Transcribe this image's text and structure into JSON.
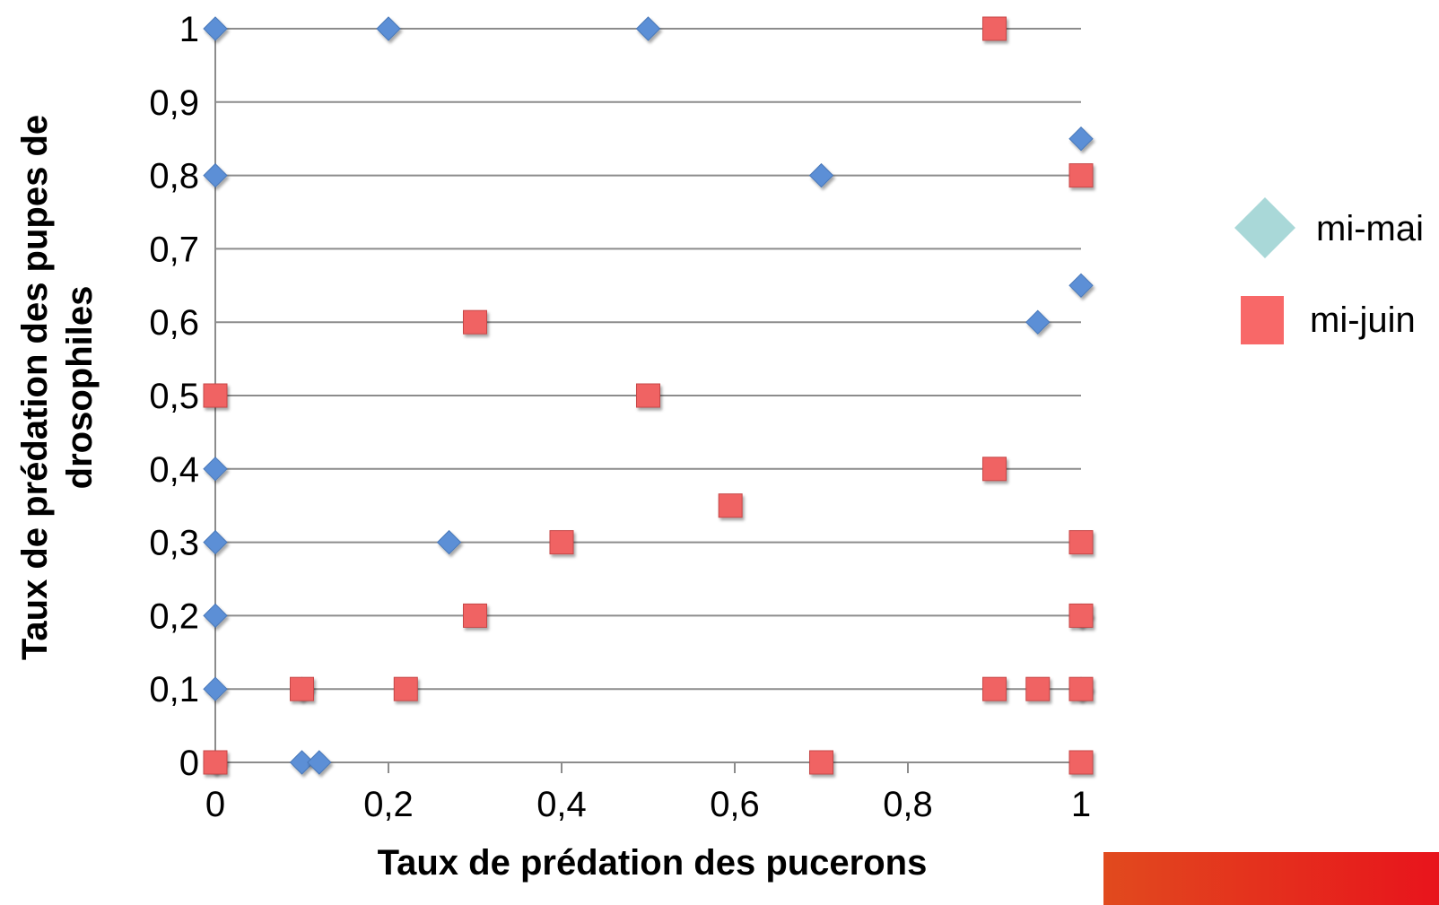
{
  "chart_data": {
    "type": "scatter",
    "xlabel": "Taux de prédation des pucerons",
    "ylabel_lines": [
      "Taux de prédation des pupes de",
      "drosophiles"
    ],
    "xlim": [
      0,
      1
    ],
    "ylim": [
      0,
      1
    ],
    "x_ticks": [
      0,
      0.2,
      0.4,
      0.6,
      0.8,
      1
    ],
    "x_tick_labels": [
      "0",
      "0,2",
      "0,4",
      "0,6",
      "0,8",
      "1"
    ],
    "y_ticks": [
      0,
      0.1,
      0.2,
      0.3,
      0.4,
      0.5,
      0.6,
      0.7,
      0.8,
      0.9,
      1
    ],
    "y_tick_labels": [
      "0",
      "0,1",
      "0,2",
      "0,3",
      "0,4",
      "0,5",
      "0,6",
      "0,7",
      "0,8",
      "0,9",
      "1"
    ],
    "grid": "horizontal",
    "legend_position": "right",
    "series": [
      {
        "name": "mi-mai",
        "marker": "diamond",
        "color": "#5b8fd6",
        "legend_color": "#a9d8d8",
        "points": [
          [
            0,
            1
          ],
          [
            0.2,
            1
          ],
          [
            0.5,
            1
          ],
          [
            1,
            0.85
          ],
          [
            0,
            0.8
          ],
          [
            0.7,
            0.8
          ],
          [
            1,
            0.65
          ],
          [
            0.95,
            0.6
          ],
          [
            0,
            0.4
          ],
          [
            0,
            0.3
          ],
          [
            0.27,
            0.3
          ],
          [
            0,
            0.2
          ],
          [
            1,
            0.2
          ],
          [
            0,
            0.1
          ],
          [
            0.1,
            0.1
          ],
          [
            1,
            0.1
          ],
          [
            0,
            0
          ],
          [
            0.1,
            0
          ],
          [
            0.12,
            0
          ]
        ]
      },
      {
        "name": "mi-juin",
        "marker": "square",
        "color": "#f06464",
        "legend_color": "#f86868",
        "points": [
          [
            0.9,
            1
          ],
          [
            1,
            0.8
          ],
          [
            0.3,
            0.6
          ],
          [
            0,
            0.5
          ],
          [
            0.5,
            0.5
          ],
          [
            0.9,
            0.4
          ],
          [
            0.595,
            0.35
          ],
          [
            0.4,
            0.3
          ],
          [
            1,
            0.3
          ],
          [
            0.3,
            0.2
          ],
          [
            1,
            0.2
          ],
          [
            0.1,
            0.1
          ],
          [
            0.22,
            0.1
          ],
          [
            0.9,
            0.1
          ],
          [
            0.95,
            0.1
          ],
          [
            1,
            0.1
          ],
          [
            0,
            0
          ],
          [
            0.7,
            0
          ],
          [
            1,
            0
          ]
        ]
      }
    ]
  },
  "accent_bar_colors": [
    "#e14a1e",
    "#e8141c"
  ]
}
